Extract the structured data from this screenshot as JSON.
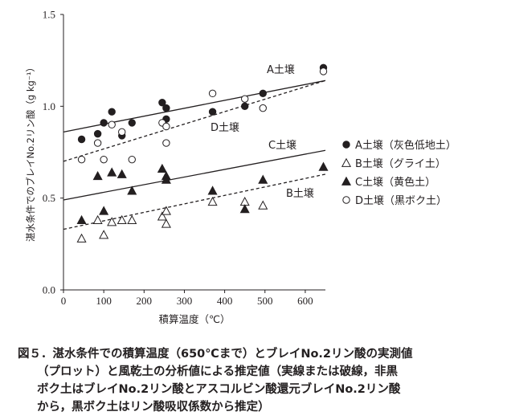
{
  "chart_data": {
    "type": "scatter",
    "title": "",
    "xlabel": "積算温度（℃）",
    "ylabel": "湛水条件でのブレイNo.2リン酸（g kg⁻¹）",
    "xlim": [
      0,
      650
    ],
    "ylim": [
      0.0,
      1.5
    ],
    "x_ticks": [
      "0",
      "100",
      "200",
      "300",
      "400",
      "500",
      "600"
    ],
    "y_ticks": [
      "0.0",
      "0.5",
      "1.0",
      "1.5"
    ],
    "grid": false,
    "legend_position": "right",
    "series": [
      {
        "name": "A土壌（灰色低地土）",
        "marker": "filled-circle",
        "points": [
          [
            45,
            0.82
          ],
          [
            85,
            0.85
          ],
          [
            100,
            0.91
          ],
          [
            120,
            0.97
          ],
          [
            145,
            0.84
          ],
          [
            170,
            0.91
          ],
          [
            245,
            1.02
          ],
          [
            255,
            0.99
          ],
          [
            255,
            0.93
          ],
          [
            370,
            0.97
          ],
          [
            450,
            1.0
          ],
          [
            495,
            1.07
          ],
          [
            645,
            1.21
          ]
        ]
      },
      {
        "name": "B土壌（グライ土）",
        "marker": "open-triangle",
        "points": [
          [
            45,
            0.28
          ],
          [
            85,
            0.38
          ],
          [
            100,
            0.3
          ],
          [
            120,
            0.37
          ],
          [
            145,
            0.38
          ],
          [
            170,
            0.38
          ],
          [
            245,
            0.4
          ],
          [
            255,
            0.43
          ],
          [
            255,
            0.36
          ],
          [
            370,
            0.48
          ],
          [
            450,
            0.48
          ],
          [
            495,
            0.46
          ]
        ]
      },
      {
        "name": "C土壌（黄色土）",
        "marker": "filled-triangle",
        "points": [
          [
            45,
            0.38
          ],
          [
            85,
            0.62
          ],
          [
            100,
            0.43
          ],
          [
            120,
            0.64
          ],
          [
            145,
            0.63
          ],
          [
            170,
            0.54
          ],
          [
            245,
            0.66
          ],
          [
            255,
            0.62
          ],
          [
            255,
            0.6
          ],
          [
            370,
            0.54
          ],
          [
            450,
            0.44
          ],
          [
            495,
            0.6
          ],
          [
            645,
            0.67
          ]
        ]
      },
      {
        "name": "D土壌（黒ボク土）",
        "marker": "open-circle",
        "points": [
          [
            45,
            0.71
          ],
          [
            85,
            0.8
          ],
          [
            100,
            0.71
          ],
          [
            120,
            0.9
          ],
          [
            145,
            0.86
          ],
          [
            170,
            0.71
          ],
          [
            245,
            0.91
          ],
          [
            255,
            0.89
          ],
          [
            255,
            0.8
          ],
          [
            370,
            1.07
          ],
          [
            450,
            1.04
          ],
          [
            495,
            0.99
          ],
          [
            645,
            1.19
          ]
        ]
      }
    ],
    "lines": [
      {
        "label": "A土壌",
        "style": "solid",
        "from": [
          0,
          0.86
        ],
        "to": [
          650,
          1.14
        ]
      },
      {
        "label": "D土壌",
        "style": "dashed",
        "from": [
          0,
          0.7
        ],
        "to": [
          650,
          1.14
        ]
      },
      {
        "label": "C土壌",
        "style": "solid",
        "from": [
          0,
          0.49
        ],
        "to": [
          650,
          0.76
        ]
      },
      {
        "label": "B土壌",
        "style": "dashed",
        "from": [
          0,
          0.33
        ],
        "to": [
          650,
          0.63
        ]
      }
    ]
  },
  "caption": {
    "line1": "図５．湛水条件での積算温度（650℃まで）とブレイNo.2リン酸の実測値",
    "line2": "（プロット）と風乾土の分析値による推定値（実線または破線，非黒",
    "line3": "ボク土はブレイNo.2リン酸とアスコルビン酸還元ブレイNo.2リン酸",
    "line4": "から，黒ボク土はリン酸吸収係数から推定）"
  }
}
